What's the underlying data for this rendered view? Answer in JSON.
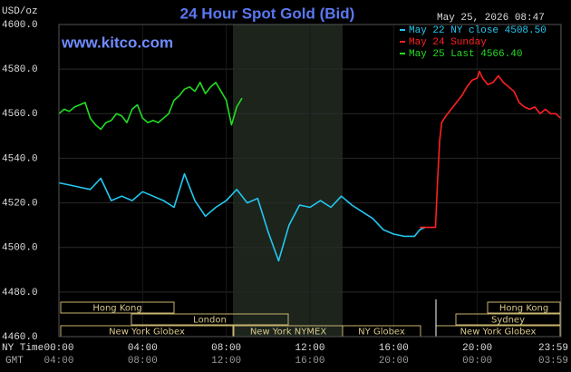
{
  "chart_data": {
    "type": "line",
    "title": "24 Hour Spot Gold (Bid)",
    "timestamp": "May 25, 2026 08:47",
    "website": "www.kitco.com",
    "y_label": "USD/oz",
    "x_label": "NY Time",
    "x2_label": "GMT",
    "xlim": [
      0,
      24
    ],
    "ylim": [
      4460,
      4600
    ],
    "yticks": [
      {
        "value": 4460,
        "label": "4460.0"
      },
      {
        "value": 4480,
        "label": "4480.0"
      },
      {
        "value": 4500,
        "label": "4500.0"
      },
      {
        "value": 4520,
        "label": "4520.0"
      },
      {
        "value": 4540,
        "label": "4540.0"
      },
      {
        "value": 4560,
        "label": "4560.0"
      },
      {
        "value": 4580,
        "label": "4580.0"
      },
      {
        "value": 4600,
        "label": "4600.0"
      }
    ],
    "xticks": [
      {
        "value": 0,
        "label": "00:00"
      },
      {
        "value": 4,
        "label": "04:00"
      },
      {
        "value": 8,
        "label": "08:00"
      },
      {
        "value": 12,
        "label": "12:00"
      },
      {
        "value": 16,
        "label": "16:00"
      },
      {
        "value": 20,
        "label": "20:00"
      },
      {
        "value": 23.98,
        "label": "23:59"
      }
    ],
    "x2ticks": [
      {
        "value": 0,
        "label": "04:00"
      },
      {
        "value": 4,
        "label": "08:00"
      },
      {
        "value": 8,
        "label": "12:00"
      },
      {
        "value": 12,
        "label": "16:00"
      },
      {
        "value": 16,
        "label": "20:00"
      },
      {
        "value": 20,
        "label": "00:00"
      },
      {
        "value": 23.98,
        "label": "03:59"
      }
    ],
    "grid": true,
    "series": [
      {
        "name": "May 22 NY close 4508.50",
        "color": "#22c8f0",
        "x": [
          0,
          0.5,
          1,
          1.5,
          2,
          2.5,
          3,
          3.5,
          4,
          4.5,
          5,
          5.5,
          6,
          6.5,
          7,
          7.5,
          8,
          8.5,
          9,
          9.5,
          10,
          10.5,
          11,
          11.5,
          12,
          12.5,
          13,
          13.5,
          14,
          14.5,
          15,
          15.5,
          16,
          16.5,
          17,
          17.25,
          17.5
        ],
        "values": [
          4529,
          4528,
          4527,
          4526,
          4531,
          4521,
          4523,
          4521,
          4525,
          4523,
          4521,
          4518,
          4533,
          4521,
          4514,
          4518,
          4521,
          4526,
          4520,
          4522,
          4507,
          4494,
          4510,
          4519,
          4518,
          4521,
          4518,
          4523,
          4519,
          4516,
          4513,
          4508,
          4506,
          4505,
          4505,
          4508,
          4509
        ]
      },
      {
        "name": "May 24 Sunday",
        "color": "#ff2020",
        "x": [
          17.25,
          18,
          18.1,
          18.2,
          18.3,
          18.5,
          18.75,
          19,
          19.25,
          19.5,
          19.75,
          20,
          20.1,
          20.25,
          20.5,
          20.75,
          21,
          21.25,
          21.5,
          21.75,
          22,
          22.25,
          22.5,
          22.75,
          23,
          23.25,
          23.5,
          23.75,
          23.98
        ],
        "values": [
          4509,
          4509,
          4530,
          4548,
          4556,
          4559,
          4562,
          4565,
          4568,
          4572,
          4575,
          4576,
          4579,
          4576,
          4573,
          4574,
          4577,
          4574,
          4572,
          4570,
          4565,
          4563,
          4562,
          4563,
          4560,
          4562,
          4560,
          4560,
          4558
        ]
      },
      {
        "name": "May 25 Last 4566.40",
        "color": "#22dd22",
        "x": [
          0,
          0.25,
          0.5,
          0.75,
          1,
          1.25,
          1.5,
          1.75,
          2,
          2.25,
          2.5,
          2.75,
          3,
          3.25,
          3.5,
          3.75,
          4,
          4.25,
          4.5,
          4.75,
          5,
          5.25,
          5.5,
          5.75,
          6,
          6.25,
          6.5,
          6.75,
          7,
          7.25,
          7.5,
          7.75,
          8,
          8.25,
          8.5,
          8.75
        ],
        "values": [
          4560,
          4562,
          4561,
          4563,
          4564,
          4565,
          4558,
          4555,
          4553,
          4556,
          4557,
          4560,
          4559,
          4556,
          4562,
          4564,
          4558,
          4556,
          4557,
          4556,
          4558,
          4560,
          4566,
          4568,
          4571,
          4572,
          4570,
          4574,
          4569,
          4572,
          4574,
          4570,
          4566,
          4555,
          4563,
          4567
        ]
      }
    ],
    "sessions": [
      "Hong Kong",
      "London",
      "New York Globex",
      "New York NYMEX",
      "NY Globex",
      "Hong Kong",
      "Sydney",
      "New York Globex"
    ]
  }
}
